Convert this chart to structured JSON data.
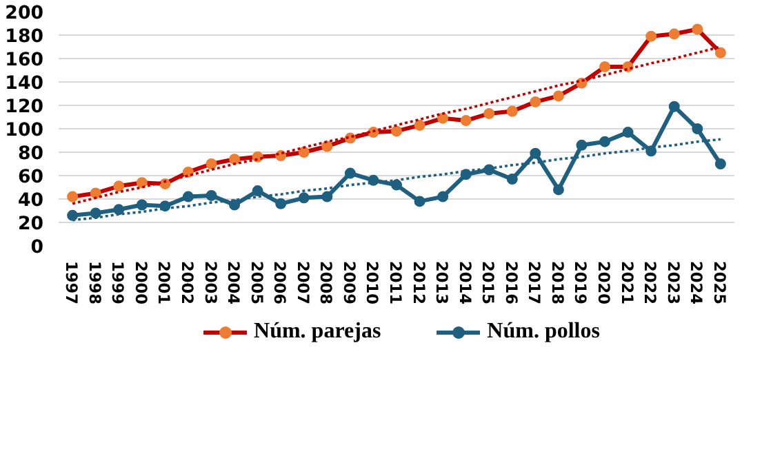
{
  "chart_data": {
    "type": "line",
    "categories": [
      "1997",
      "1998",
      "1999",
      "2000",
      "2001",
      "2002",
      "2003",
      "2004",
      "2005",
      "2006",
      "2007",
      "2008",
      "2009",
      "2010",
      "2011",
      "2012",
      "2013",
      "2014",
      "2015",
      "2016",
      "2017",
      "2018",
      "2019",
      "2020",
      "2021",
      "2022",
      "2023",
      "2024",
      "2025"
    ],
    "series": [
      {
        "name": "Núm. parejas",
        "color": "#c00000",
        "colors": [
          "#ed7d31",
          "#ed7d31",
          "#ed7d31",
          "#ed7d31",
          "#ed7d31",
          "#ed7d31",
          "#ed7d31",
          "#ed7d31",
          "#ed7d31",
          "#ed7d31",
          "#ed7d31",
          "#ed7d31",
          "#ed7d31",
          "#ed7d31",
          "#ed7d31",
          "#ed7d31",
          "#ed7d31",
          "#ed7d31",
          "#ed7d31",
          "#ed7d31",
          "#ed7d31",
          "#ed7d31",
          "#ed7d31",
          "#ed7d31",
          "#ed7d31",
          "#ed7d31",
          "#ed7d31",
          "#ed7d31",
          "#ed7d31"
        ],
        "values": [
          42,
          45,
          51,
          54,
          53,
          63,
          70,
          74,
          76,
          77,
          80,
          85,
          92,
          97,
          98,
          103,
          109,
          107,
          113,
          115,
          123,
          128,
          139,
          153,
          153,
          179,
          181,
          185,
          165
        ]
      },
      {
        "name": "Núm. pollos",
        "color": "#1f5f7f",
        "values": [
          26,
          28,
          31,
          35,
          34,
          42,
          43,
          35,
          47,
          36,
          41,
          42,
          62,
          56,
          52,
          38,
          42,
          61,
          65,
          57,
          79,
          48,
          86,
          89,
          97,
          81,
          119,
          100,
          70
        ]
      },
      {
        "type": "line",
        "color": "#c00000",
        "line_style": "dotted",
        "marker": "none",
        "values": [
          36,
          41,
          46,
          50,
          55,
          60,
          65,
          70,
          74,
          79,
          84,
          89,
          93,
          98,
          103,
          108,
          113,
          117,
          122,
          127,
          132,
          137,
          141,
          146,
          151,
          156,
          160,
          165,
          170
        ]
      },
      {
        "type": "line",
        "color": "#1f5f7f",
        "line_style": "dotted",
        "marker": "none",
        "values": [
          22,
          24,
          27,
          29,
          32,
          34,
          37,
          39,
          42,
          44,
          47,
          49,
          52,
          54,
          56,
          59,
          61,
          64,
          66,
          69,
          71,
          74,
          76,
          79,
          81,
          84,
          86,
          89,
          91
        ]
      }
    ],
    "ylim": [
      0,
      200
    ],
    "yticks": [
      0,
      20,
      40,
      60,
      80,
      100,
      120,
      140,
      160,
      180,
      200
    ],
    "grid": "y",
    "legend": "bottom",
    "marker": "circle",
    "line_style": "solid"
  }
}
